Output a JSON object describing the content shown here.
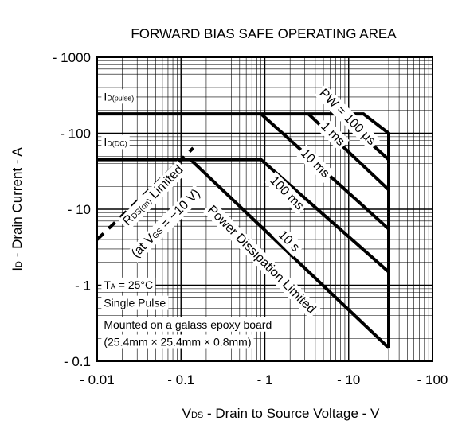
{
  "chart_data": {
    "type": "line",
    "title": "FORWARD BIAS SAFE OPERATING AREA",
    "xlabel": "V<sub>DS</sub> - Drain to Source Voltage - V",
    "xlabel_parts": [
      {
        "text": "V",
        "sub": false
      },
      {
        "text": "DS",
        "sub": true
      },
      {
        "text": " - Drain to Source Voltage - V",
        "sub": false
      }
    ],
    "ylabel_parts": [
      {
        "text": "I",
        "sub": false
      },
      {
        "text": "D",
        "sub": true
      },
      {
        "text": " - Drain Current - A",
        "sub": false
      }
    ],
    "x_scale": "log",
    "y_scale": "log",
    "xlim": [
      0.01,
      100
    ],
    "ylim": [
      0.1,
      1000
    ],
    "x_ticks": [
      0.01,
      0.1,
      1,
      10,
      100
    ],
    "x_tick_labels": [
      "- 0.01",
      "- 0.1",
      "- 1",
      "- 10",
      "- 100"
    ],
    "y_ticks": [
      0.1,
      1,
      10,
      100,
      1000
    ],
    "y_tick_labels": [
      "- 0.1",
      "- 1",
      "- 10",
      "- 100",
      "- 1000"
    ],
    "grid": true,
    "series": [
      {
        "points": [
          [
            0.01,
            180
          ],
          [
            15,
            180
          ],
          [
            30,
            100
          ],
          [
            30,
            0.15
          ]
        ]
      },
      {
        "points": [
          [
            0.01,
            45
          ],
          [
            0.13,
            45
          ],
          [
            0.9,
            45
          ],
          [
            30,
            1.5
          ]
        ]
      },
      {
        "points": [
          [
            0.13,
            45
          ],
          [
            30,
            0.15
          ]
        ]
      },
      {
        "points": [
          [
            0.9,
            180
          ],
          [
            30,
            5.5
          ]
        ]
      },
      {
        "points": [
          [
            3.3,
            180
          ],
          [
            30,
            18
          ]
        ]
      },
      {
        "points": [
          [
            7.5,
            180
          ],
          [
            30,
            45
          ]
        ]
      },
      {
        "points": [
          [
            0.01,
            4
          ],
          [
            0.14,
            64
          ]
        ],
        "dashed": true
      }
    ],
    "annotations": [
      {
        "parts": [
          {
            "text": "I",
            "sub": false
          },
          {
            "text": "D(pulse)",
            "sub": true
          }
        ],
        "x": 0.012,
        "y": 270
      },
      {
        "parts": [
          {
            "text": "I",
            "sub": false
          },
          {
            "text": "D(DC)",
            "sub": true
          }
        ],
        "x": 0.012,
        "y": 68
      },
      {
        "parts": [
          {
            "text": "PW = 100 μs",
            "sub": false
          }
        ],
        "x": 9,
        "y": 150,
        "rotate": 45
      },
      {
        "parts": [
          {
            "text": "1 ms",
            "sub": false
          }
        ],
        "x": 6,
        "y": 90,
        "rotate": 45
      },
      {
        "parts": [
          {
            "text": "10 ms",
            "sub": false
          }
        ],
        "x": 3.7,
        "y": 37,
        "rotate": 45
      },
      {
        "parts": [
          {
            "text": "100 ms",
            "sub": false
          }
        ],
        "x": 1.7,
        "y": 15,
        "rotate": 45
      },
      {
        "parts": [
          {
            "text": "10 s",
            "sub": false
          }
        ],
        "x": 1.8,
        "y": 3.5,
        "rotate": 45
      },
      {
        "parts": [
          {
            "text": "Power Dissipation Limited",
            "sub": false
          }
        ],
        "x": 0.85,
        "y": 2,
        "rotate": 45
      },
      {
        "parts": [
          {
            "text": "R",
            "sub": false
          },
          {
            "text": "DS(on)",
            "sub": true
          },
          {
            "text": " Limited",
            "sub": false
          }
        ],
        "x": 0.05,
        "y": 14,
        "rotate": -45
      },
      {
        "parts": [
          {
            "text": "(at V",
            "sub": false
          },
          {
            "text": "GS",
            "sub": true
          },
          {
            "text": " = −10 V)",
            "sub": false
          }
        ],
        "x": 0.071,
        "y": 6,
        "rotate": -45
      },
      {
        "parts": [
          {
            "text": "T",
            "sub": false
          },
          {
            "text": "A",
            "sub": true
          },
          {
            "text": " = 25°C",
            "sub": false
          }
        ],
        "x": 0.012,
        "y": 0.9
      },
      {
        "parts": [
          {
            "text": "Single Pulse",
            "sub": false
          }
        ],
        "x": 0.012,
        "y": 0.52
      },
      {
        "parts": [
          {
            "text": "Mounted on a galass epoxy board",
            "sub": false
          }
        ],
        "x": 0.012,
        "y": 0.27
      },
      {
        "parts": [
          {
            "text": "(25.4mm × 25.4mm × 0.8mm)",
            "sub": false
          }
        ],
        "x": 0.012,
        "y": 0.16
      }
    ]
  }
}
